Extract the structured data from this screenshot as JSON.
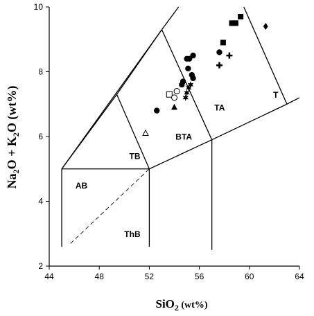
{
  "chart_data": {
    "type": "scatter",
    "title": "",
    "xlabel": {
      "main": "SiO",
      "sub": "2",
      "unit": " (wt%)"
    },
    "ylabel": {
      "p1": "Na",
      "s1": "2",
      "p2": "O + K",
      "s2": "2",
      "p3": "O (wt%)"
    },
    "xlim": [
      44,
      64
    ],
    "ylim": [
      2,
      10
    ],
    "x_ticks": [
      44,
      48,
      52,
      56,
      60,
      64
    ],
    "y_ticks": [
      2,
      4,
      6,
      8,
      10
    ],
    "grid": false,
    "field_boundaries": [
      [
        [
          45,
          2.6
        ],
        [
          45,
          5
        ]
      ],
      [
        [
          45,
          5
        ],
        [
          52,
          5
        ]
      ],
      [
        [
          52,
          2.6
        ],
        [
          52,
          5
        ]
      ],
      [
        [
          45,
          5
        ],
        [
          49.4,
          7.3
        ]
      ],
      [
        [
          49.4,
          7.3
        ],
        [
          52,
          5
        ]
      ],
      [
        [
          52,
          5
        ],
        [
          57,
          5.9
        ]
      ],
      [
        [
          57,
          2.5
        ],
        [
          57,
          5.9
        ]
      ],
      [
        [
          45,
          5
        ],
        [
          53,
          9.3
        ]
      ],
      [
        [
          49.4,
          7.3
        ],
        [
          53,
          9.3
        ]
      ],
      [
        [
          53,
          9.3
        ],
        [
          57,
          5.9
        ]
      ],
      [
        [
          53,
          9.3
        ],
        [
          57.6,
          11.7
        ]
      ],
      [
        [
          57,
          5.9
        ],
        [
          63,
          7
        ]
      ],
      [
        [
          63,
          7
        ],
        [
          64,
          7.2
        ]
      ],
      [
        [
          63,
          7
        ],
        [
          57.6,
          11.7
        ]
      ]
    ],
    "dashed_line": [
      [
        45.7,
        2.7
      ],
      [
        52,
        5
      ]
    ],
    "field_labels": [
      {
        "text": "AB",
        "x": 46.1,
        "y": 4.4
      },
      {
        "text": "TB",
        "x": 50.4,
        "y": 5.3
      },
      {
        "text": "BTA",
        "x": 54.1,
        "y": 5.9
      },
      {
        "text": "TA",
        "x": 57.2,
        "y": 6.8
      },
      {
        "text": "T",
        "x": 61.9,
        "y": 7.2
      },
      {
        "text": "ThB",
        "x": 50.0,
        "y": 2.9
      }
    ],
    "series": [
      {
        "marker": "filled-circle",
        "points": [
          [
            52.6,
            6.8
          ],
          [
            54.6,
            7.6
          ],
          [
            54.7,
            7.7
          ],
          [
            55.0,
            8.4
          ],
          [
            55.2,
            8.4
          ],
          [
            55.5,
            8.5
          ],
          [
            55.1,
            8.1
          ],
          [
            55.4,
            7.9
          ],
          [
            55.5,
            7.8
          ],
          [
            57.6,
            8.6
          ]
        ]
      },
      {
        "marker": "filled-square",
        "points": [
          [
            57.9,
            8.9
          ],
          [
            58.6,
            9.5
          ],
          [
            58.9,
            9.5
          ],
          [
            59.3,
            9.7
          ]
        ]
      },
      {
        "marker": "plus",
        "points": [
          [
            57.6,
            8.2
          ],
          [
            58.4,
            8.5
          ]
        ]
      },
      {
        "marker": "filled-diamond",
        "points": [
          [
            61.3,
            9.4
          ]
        ]
      },
      {
        "marker": "filled-triangle",
        "points": [
          [
            54.0,
            6.9
          ]
        ]
      },
      {
        "marker": "open-triangle",
        "points": [
          [
            51.7,
            6.1
          ]
        ]
      },
      {
        "marker": "open-square",
        "points": [
          [
            53.6,
            7.3
          ]
        ]
      },
      {
        "marker": "open-circle",
        "points": [
          [
            54.2,
            7.4
          ],
          [
            54.0,
            7.2
          ]
        ]
      },
      {
        "marker": "star",
        "points": [
          [
            54.9,
            7.2
          ],
          [
            55.0,
            7.35
          ],
          [
            55.15,
            7.5
          ],
          [
            55.3,
            7.6
          ]
        ]
      }
    ]
  }
}
